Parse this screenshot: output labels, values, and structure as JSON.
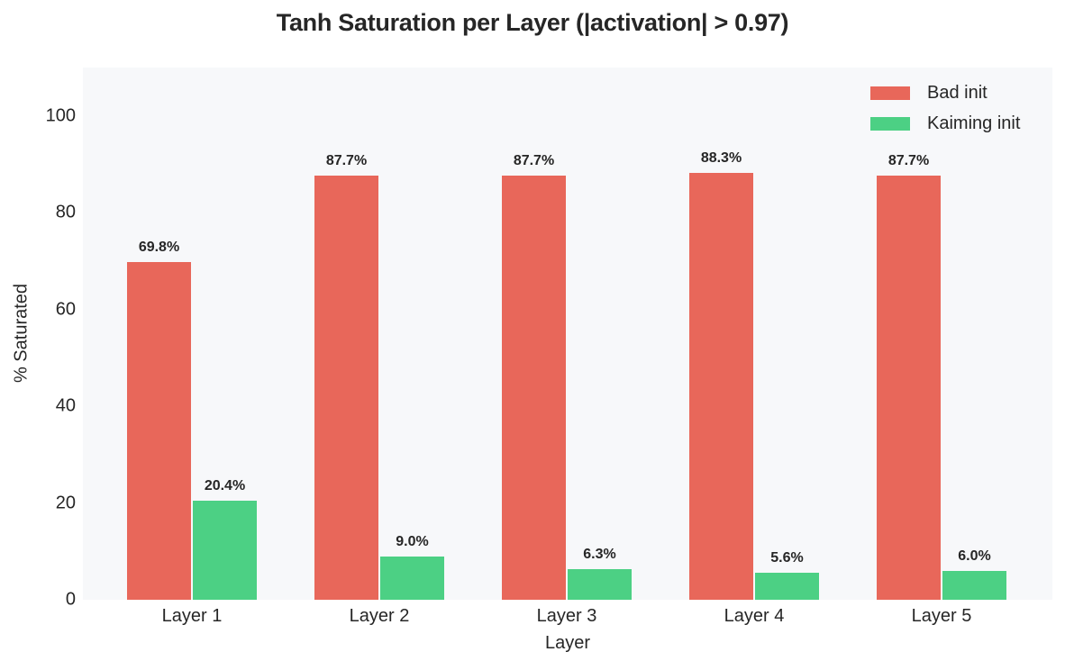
{
  "chart_data": {
    "type": "bar",
    "title": "Tanh Saturation per Layer (|activation| > 0.97)",
    "xlabel": "Layer",
    "ylabel": "% Saturated",
    "ylim": [
      0,
      110
    ],
    "yticks": [
      0,
      20,
      40,
      60,
      80,
      100
    ],
    "grid": false,
    "legend_position": "upper right",
    "categories": [
      "Layer 1",
      "Layer 2",
      "Layer 3",
      "Layer 4",
      "Layer 5"
    ],
    "series": [
      {
        "name": "Bad init",
        "color": "#e8675a",
        "values": [
          69.8,
          87.7,
          87.7,
          88.3,
          87.7
        ],
        "labels": [
          "69.8%",
          "87.7%",
          "87.7%",
          "88.3%",
          "87.7%"
        ]
      },
      {
        "name": "Kaiming init",
        "color": "#4cd084",
        "values": [
          20.4,
          9.0,
          6.3,
          5.6,
          6.0
        ],
        "labels": [
          "20.4%",
          "9.0%",
          "6.3%",
          "5.6%",
          "6.0%"
        ]
      }
    ]
  },
  "title": "Tanh Saturation per Layer (|activation| > 0.97)",
  "axes": {
    "xlabel": "Layer",
    "ylabel": "% Saturated",
    "yticks": [
      "0",
      "20",
      "40",
      "60",
      "80",
      "100"
    ],
    "xticks": [
      "Layer 1",
      "Layer 2",
      "Layer 3",
      "Layer 4",
      "Layer 5"
    ]
  },
  "legend": {
    "items": [
      {
        "label": "Bad init",
        "color": "#e8675a"
      },
      {
        "label": "Kaiming init",
        "color": "#4cd084"
      }
    ]
  },
  "colors": {
    "plot_background": "#f7f8fa",
    "text": "#262626"
  }
}
